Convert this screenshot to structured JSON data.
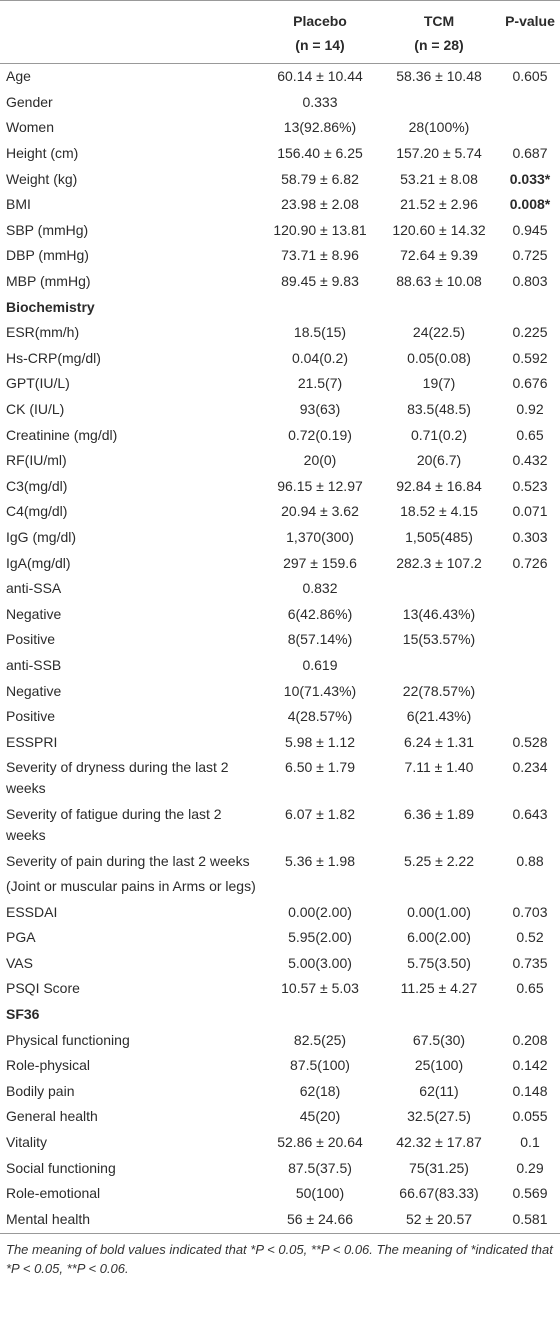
{
  "table": {
    "header": [
      {
        "name": "Placebo",
        "n": "(n = 14)"
      },
      {
        "name": "TCM",
        "n": "(n = 28)"
      },
      {
        "name": "P-value"
      }
    ],
    "rows": [
      {
        "label": "Age",
        "placebo": "60.14 ± 10.44",
        "tcm": "58.36 ± 10.48",
        "p": "0.605"
      },
      {
        "label": "Gender",
        "placebo": "0.333"
      },
      {
        "label": "Women",
        "placebo": "13(92.86%)",
        "tcm": "28(100%)"
      },
      {
        "label": "Height (cm)",
        "placebo": "156.40 ± 6.25",
        "tcm": "157.20 ± 5.74",
        "p": "0.687"
      },
      {
        "label": "Weight (kg)",
        "placebo": "58.79 ± 6.82",
        "tcm": "53.21 ± 8.08",
        "p": "0.033*",
        "bold": true
      },
      {
        "label": "BMI",
        "placebo": "23.98 ± 2.08",
        "tcm": "21.52 ± 2.96",
        "p": "0.008*",
        "bold": true
      },
      {
        "label": "SBP (mmHg)",
        "placebo": "120.90 ± 13.81",
        "tcm": "120.60 ± 14.32",
        "p": "0.945"
      },
      {
        "label": "DBP (mmHg)",
        "placebo": "73.71 ± 8.96",
        "tcm": "72.64 ± 9.39",
        "p": "0.725"
      },
      {
        "label": "MBP (mmHg)",
        "placebo": "89.45 ± 9.83",
        "tcm": "88.63 ± 10.08",
        "p": "0.803"
      },
      {
        "section": "Biochemistry"
      },
      {
        "label": "ESR(mm/h)",
        "placebo": "18.5(15)",
        "tcm": "24(22.5)",
        "p": "0.225"
      },
      {
        "label": "Hs-CRP(mg/dl)",
        "placebo": "0.04(0.2)",
        "tcm": "0.05(0.08)",
        "p": "0.592"
      },
      {
        "label": "GPT(IU/L)",
        "placebo": "21.5(7)",
        "tcm": "19(7)",
        "p": "0.676"
      },
      {
        "label": "CK (IU/L)",
        "placebo": "93(63)",
        "tcm": "83.5(48.5)",
        "p": "0.92"
      },
      {
        "label": "Creatinine (mg/dl)",
        "placebo": "0.72(0.19)",
        "tcm": "0.71(0.2)",
        "p": "0.65"
      },
      {
        "label": "RF(IU/ml)",
        "placebo": "20(0)",
        "tcm": "20(6.7)",
        "p": "0.432"
      },
      {
        "label": "C3(mg/dl)",
        "placebo": "96.15 ± 12.97",
        "tcm": "92.84 ± 16.84",
        "p": "0.523"
      },
      {
        "label": "C4(mg/dl)",
        "placebo": "20.94 ± 3.62",
        "tcm": "18.52 ± 4.15",
        "p": "0.071"
      },
      {
        "label": "IgG (mg/dl)",
        "placebo": "1,370(300)",
        "tcm": "1,505(485)",
        "p": "0.303"
      },
      {
        "label": "IgA(mg/dl)",
        "placebo": "297 ± 159.6",
        "tcm": "282.3 ± 107.2",
        "p": "0.726"
      },
      {
        "label": "anti-SSA",
        "placebo": "0.832"
      },
      {
        "label": "Negative",
        "placebo": "6(42.86%)",
        "tcm": "13(46.43%)"
      },
      {
        "label": "Positive",
        "placebo": "8(57.14%)",
        "tcm": "15(53.57%)"
      },
      {
        "label": "anti-SSB",
        "placebo": "0.619"
      },
      {
        "label": "Negative",
        "placebo": "10(71.43%)",
        "tcm": "22(78.57%)"
      },
      {
        "label": "Positive",
        "placebo": "4(28.57%)",
        "tcm": "6(21.43%)"
      },
      {
        "label": "ESSPRI",
        "placebo": "5.98 ± 1.12",
        "tcm": "6.24 ± 1.31",
        "p": "0.528"
      },
      {
        "label": "Severity of dryness during the last 2 weeks",
        "placebo": "6.50 ± 1.79",
        "tcm": "7.11 ± 1.40",
        "p": "0.234"
      },
      {
        "label": "Severity of fatigue during the last 2 weeks",
        "placebo": "6.07 ± 1.82",
        "tcm": "6.36 ± 1.89",
        "p": "0.643"
      },
      {
        "label": "Severity of pain during the last 2 weeks",
        "placebo": "5.36 ± 1.98",
        "tcm": "5.25 ± 2.22",
        "p": "0.88"
      },
      {
        "label": "(Joint or muscular pains in Arms or legs)"
      },
      {
        "label": "ESSDAI",
        "placebo": "0.00(2.00)",
        "tcm": "0.00(1.00)",
        "p": "0.703"
      },
      {
        "label": "PGA",
        "placebo": "5.95(2.00)",
        "tcm": "6.00(2.00)",
        "p": "0.52"
      },
      {
        "label": "VAS",
        "placebo": "5.00(3.00)",
        "tcm": "5.75(3.50)",
        "p": "0.735"
      },
      {
        "label": "PSQI Score",
        "placebo": "10.57 ± 5.03",
        "tcm": "11.25 ± 4.27",
        "p": "0.65"
      },
      {
        "section": "SF36"
      },
      {
        "label": "Physical functioning",
        "placebo": "82.5(25)",
        "tcm": "67.5(30)",
        "p": "0.208"
      },
      {
        "label": "Role-physical",
        "placebo": "87.5(100)",
        "tcm": "25(100)",
        "p": "0.142"
      },
      {
        "label": "Bodily pain",
        "placebo": "62(18)",
        "tcm": "62(11)",
        "p": "0.148"
      },
      {
        "label": "General health",
        "placebo": "45(20)",
        "tcm": "32.5(27.5)",
        "p": "0.055"
      },
      {
        "label": "Vitality",
        "placebo": "52.86 ± 20.64",
        "tcm": "42.32 ± 17.87",
        "p": "0.1"
      },
      {
        "label": "Social functioning",
        "placebo": "87.5(37.5)",
        "tcm": "75(31.25)",
        "p": "0.29"
      },
      {
        "label": "Role-emotional",
        "placebo": "50(100)",
        "tcm": "66.67(83.33)",
        "p": "0.569"
      },
      {
        "label": "Mental health",
        "placebo": "56 ± 24.66",
        "tcm": "52 ± 20.57",
        "p": "0.581"
      }
    ],
    "footnote": "The meaning of bold values indicated that *P < 0.05, **P < 0.06. The meaning of *indicated that *P < 0.05, **P < 0.06."
  }
}
